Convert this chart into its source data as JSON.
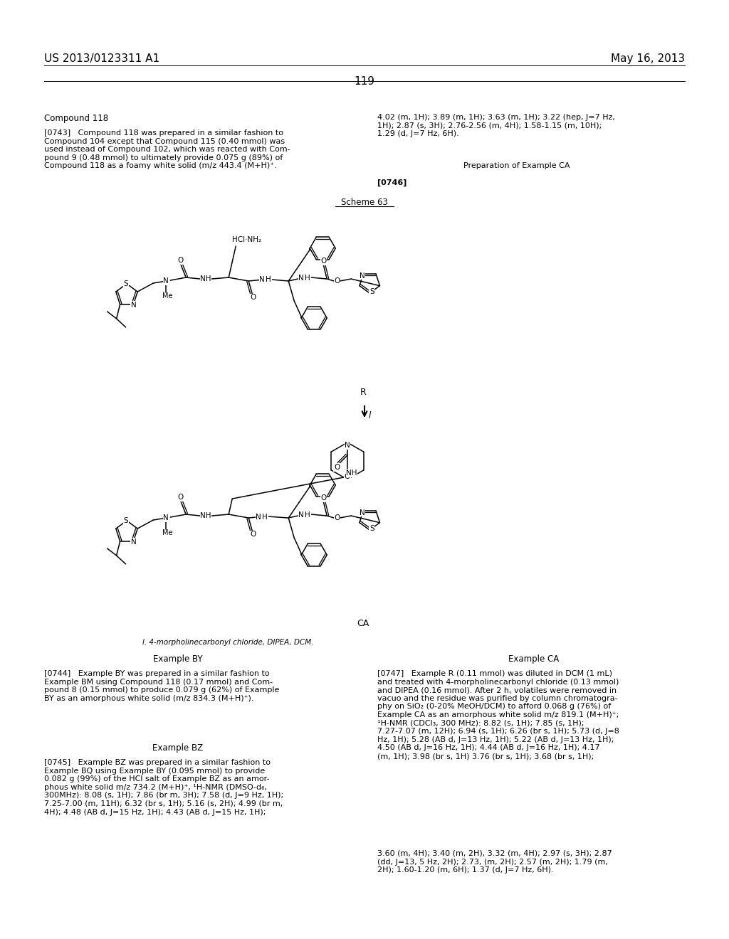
{
  "background_color": "#ffffff",
  "header_left": "US 2013/0123311 A1",
  "header_right": "May 16, 2013",
  "page_number": "119"
}
